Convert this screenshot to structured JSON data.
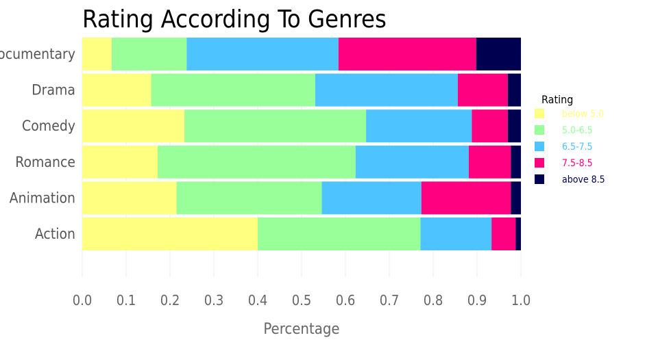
{
  "chart_data": {
    "type": "bar",
    "orientation": "horizontal",
    "stacked": true,
    "title": "Rating According To Genres",
    "xlabel": "Percentage",
    "ylabel": "",
    "xlim": [
      0,
      1
    ],
    "xticks": [
      "0.0",
      "0.1",
      "0.2",
      "0.3",
      "0.4",
      "0.5",
      "0.6",
      "0.7",
      "0.8",
      "0.9",
      "1.0"
    ],
    "grid": true,
    "legend_title": "Rating",
    "legend_position": "right",
    "categories": [
      "Documentary",
      "Drama",
      "Comedy",
      "Romance",
      "Animation",
      "Action"
    ],
    "series": [
      {
        "name": "below 5.0",
        "color": "#ffff80",
        "values": [
          0.067,
          0.157,
          0.233,
          0.172,
          0.215,
          0.4
        ]
      },
      {
        "name": "5.0-6.5",
        "color": "#99ff99",
        "values": [
          0.171,
          0.374,
          0.414,
          0.451,
          0.331,
          0.371
        ]
      },
      {
        "name": "6.5-7.5",
        "color": "#4dc3ff",
        "values": [
          0.346,
          0.325,
          0.241,
          0.258,
          0.227,
          0.162
        ]
      },
      {
        "name": "7.5-8.5",
        "color": "#ff0080",
        "values": [
          0.314,
          0.114,
          0.082,
          0.096,
          0.204,
          0.055
        ]
      },
      {
        "name": "above 8.5",
        "color": "#000050",
        "values": [
          0.102,
          0.03,
          0.03,
          0.023,
          0.023,
          0.012
        ]
      }
    ]
  }
}
